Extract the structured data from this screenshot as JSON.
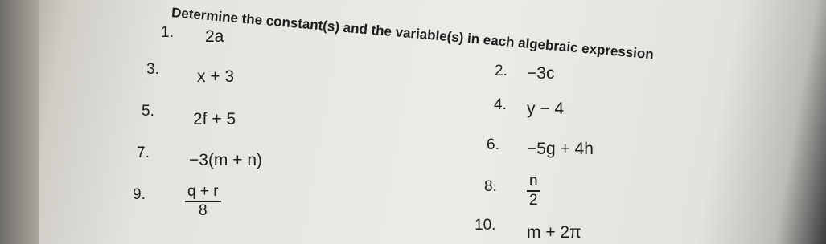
{
  "heading": "Determine the constant(s) and the variable(s) in each algebraic expression",
  "items": [
    {
      "number": "1.",
      "expression": "2a"
    },
    {
      "number": "2.",
      "expression": "−3c"
    },
    {
      "number": "3.",
      "expression": "x + 3"
    },
    {
      "number": "4.",
      "expression": "y − 4"
    },
    {
      "number": "5.",
      "expression": "2f + 5"
    },
    {
      "number": "6.",
      "expression": "−5g + 4h"
    },
    {
      "number": "7.",
      "expression": "−3(m + n)"
    },
    {
      "number": "8.",
      "numerator": "n",
      "denominator": "2"
    },
    {
      "number": "9.",
      "numerator": "q + r",
      "denominator": "8"
    },
    {
      "number": "10.",
      "expression": "m + 2π"
    }
  ]
}
